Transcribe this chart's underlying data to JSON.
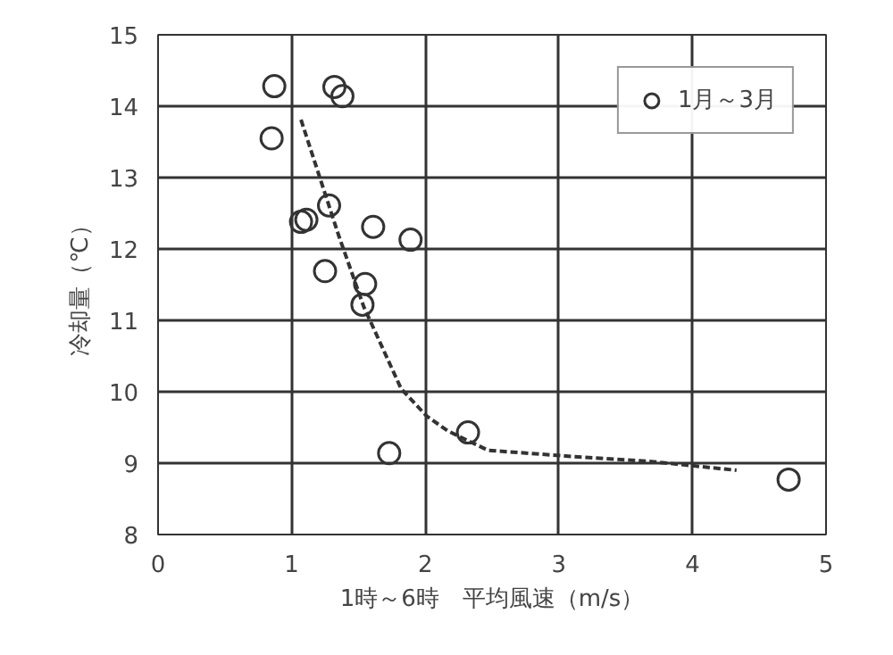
{
  "chart_data": {
    "type": "scatter",
    "xlabel": "1時～6時　平均風速（m/s）",
    "ylabel": "冷却量（℃）",
    "xlim": [
      0,
      5
    ],
    "ylim": [
      8,
      15
    ],
    "xticks": [
      0,
      1,
      2,
      3,
      4,
      5
    ],
    "yticks": [
      8,
      9,
      10,
      11,
      12,
      13,
      14,
      15
    ],
    "grid": true,
    "legend": "top right",
    "series": [
      {
        "name": "1月～3月",
        "color": "#333333",
        "marker": "circle",
        "x": [
          0.87,
          1.32,
          1.38,
          0.85,
          1.28,
          1.07,
          1.11,
          1.61,
          1.89,
          1.25,
          1.55,
          1.53,
          2.32,
          1.73,
          4.72
        ],
        "values": [
          14.28,
          14.27,
          14.14,
          13.55,
          12.61,
          12.38,
          12.41,
          12.31,
          12.13,
          11.69,
          11.51,
          11.22,
          9.43,
          9.14,
          8.77
        ]
      },
      {
        "type": "line",
        "line_style": "dashed",
        "color": "#333333",
        "x": [
          1.07,
          1.35,
          1.54,
          1.82,
          2.01,
          2.17,
          2.47,
          3.05,
          3.71,
          4.33
        ],
        "values": [
          13.81,
          12.2,
          11.19,
          10.04,
          9.66,
          9.45,
          9.18,
          9.1,
          9.02,
          8.9
        ]
      }
    ]
  }
}
